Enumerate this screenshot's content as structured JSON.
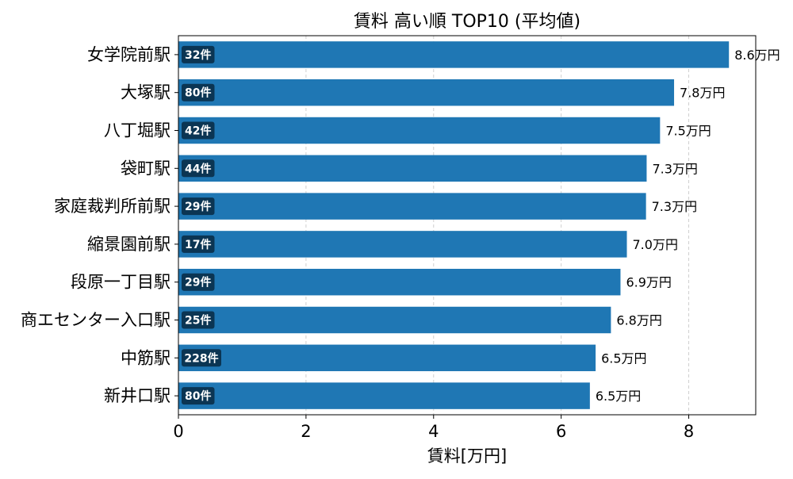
{
  "chart_data": {
    "type": "bar",
    "orientation": "horizontal",
    "title": "賃料 高い順 TOP10 (平均値)",
    "xlabel": "賃料[万円]",
    "ylabel": "",
    "xlim": [
      0,
      9.05
    ],
    "xticks": [
      0,
      2,
      4,
      6,
      8
    ],
    "grid": "x-dashed",
    "bar_color": "#1f77b4",
    "count_badge_color": "#0b3553",
    "value_suffix": "万円",
    "count_suffix": "件",
    "categories": [
      "女学院前駅",
      "大塚駅",
      "八丁堀駅",
      "袋町駅",
      "家庭裁判所前駅",
      "縮景園前駅",
      "段原一丁目駅",
      "商エセンター入口駅",
      "中筋駅",
      "新井口駅"
    ],
    "values": [
      8.63,
      7.77,
      7.55,
      7.34,
      7.33,
      7.03,
      6.93,
      6.78,
      6.54,
      6.45
    ],
    "value_labels": [
      "8.6万円",
      "7.8万円",
      "7.5万円",
      "7.3万円",
      "7.3万円",
      "7.0万円",
      "6.9万円",
      "6.8万円",
      "6.5万円",
      "6.5万円"
    ],
    "counts": [
      32,
      80,
      42,
      44,
      29,
      17,
      29,
      25,
      228,
      80
    ],
    "count_labels": [
      "32件",
      "80件",
      "42件",
      "44件",
      "29件",
      "17件",
      "29件",
      "25件",
      "228件",
      "80件"
    ]
  }
}
